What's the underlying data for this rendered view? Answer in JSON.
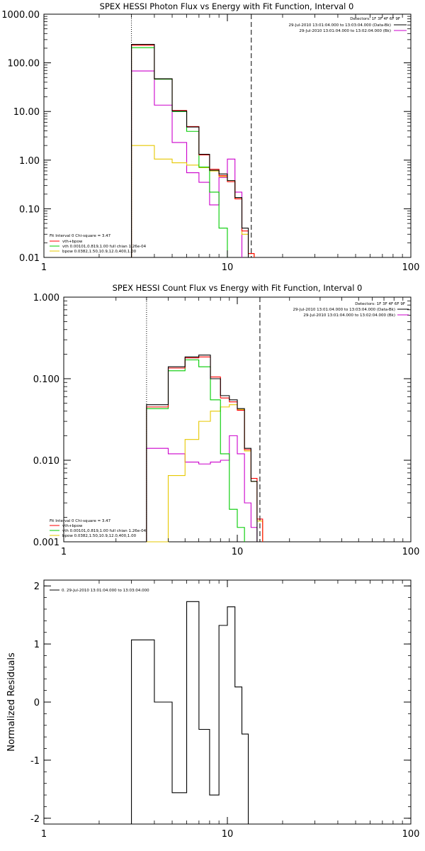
{
  "colors": {
    "total": "#000000",
    "model": "#ff0000",
    "vth": "#00cc00",
    "bpow": "#e6c800",
    "bk": "#cc00cc"
  },
  "chart_data": [
    {
      "type": "line",
      "title": "SPEX HESSI Photon Flux vs Energy with Fit Function, Interval 0",
      "xscale": "log",
      "yscale": "log",
      "xlim": [
        1,
        100
      ],
      "ylim": [
        0.01,
        1000
      ],
      "x_ticks": [
        "1",
        "10",
        "100"
      ],
      "y_ticks": [
        "0.01",
        "0.10",
        "1.00",
        "10.00",
        "100.00",
        "1000.00"
      ],
      "info_lines": [
        "Detectors: 1F 3F 4F 6F 9F",
        "29-Jul-2010 13:01:04.000 to 13:03:04.000 (Data-Bk)",
        "29-Jul-2010 13:01:04.000 to 13:02:04.000 (Bk)"
      ],
      "fit_legend": [
        "Fit Interval 0   Chi-square = 3.47",
        "vth+bpow",
        "vth 0.00101,0.819,1.00   full chian 1.26e-04",
        "bpow 0.0382,1.50,10.9,12.0,400,1.00"
      ],
      "vlines": [
        3.0,
        13.5
      ],
      "bin_edges": [
        3.0,
        4.0,
        5.0,
        6.0,
        7.0,
        8.0,
        9.0,
        10.0,
        11.0,
        12.0,
        13.0,
        14.0,
        15.0
      ],
      "series": [
        {
          "key": "total",
          "values": [
            240,
            47,
            10.2,
            4.8,
            1.32,
            0.62,
            0.52,
            0.38,
            0.17,
            0.04,
            null,
            null
          ]
        },
        {
          "key": "model",
          "values": [
            230,
            47,
            10.5,
            4.9,
            1.28,
            0.65,
            0.48,
            0.36,
            0.16,
            0.035,
            0.012,
            null
          ]
        },
        {
          "key": "vth",
          "values": [
            205,
            46,
            10.0,
            3.9,
            0.72,
            0.22,
            0.04,
            null,
            null,
            null,
            null,
            null
          ]
        },
        {
          "key": "bpow",
          "values": [
            2.0,
            1.05,
            0.88,
            0.79,
            0.7,
            0.6,
            0.46,
            0.38,
            0.16,
            0.03,
            0.012,
            null
          ]
        },
        {
          "key": "bk",
          "values": [
            68,
            13.5,
            2.3,
            0.55,
            0.35,
            0.12,
            0.44,
            1.05,
            0.22,
            null,
            null,
            null
          ]
        }
      ]
    },
    {
      "type": "line",
      "title": "SPEX HESSI Count Flux vs Energy with Fit Function, Interval 0",
      "xscale": "log",
      "yscale": "log",
      "xlim": [
        1,
        100
      ],
      "ylim": [
        0.001,
        1
      ],
      "x_ticks": [
        "1",
        "10",
        "100"
      ],
      "y_ticks": [
        "0.001",
        "0.010",
        "0.100",
        "1.000"
      ],
      "info_lines": [
        "Detectors: 1F 3F 4F 6F 9F",
        "29-Jul-2010 13:01:04.000 to 13:03:04.000 (Data-Bk)",
        "29-Jul-2010 13:01:04.000 to 13:02:04.000 (Bk)"
      ],
      "fit_legend": [
        "Fit Interval 0   Chi-square = 3.47",
        "vth+bpow",
        "vth 0.00101,0.819,1.00   full chian 1.26e-04",
        "bpow 0.0382,1.50,10.9,12.0,400,1.00"
      ],
      "vlines": [
        3.0,
        13.5
      ],
      "bin_edges": [
        3.0,
        4.0,
        5.0,
        6.0,
        7.0,
        8.0,
        9.0,
        10.0,
        11.0,
        12.0,
        13.0,
        14.0,
        15.0
      ],
      "series": [
        {
          "key": "total",
          "values": [
            0.048,
            0.14,
            0.185,
            0.195,
            0.1,
            0.062,
            0.055,
            0.043,
            0.014,
            0.0055,
            null,
            null
          ]
        },
        {
          "key": "model",
          "values": [
            0.045,
            0.135,
            0.18,
            0.185,
            0.105,
            0.058,
            0.052,
            0.041,
            0.0135,
            0.006,
            0.0019,
            null
          ]
        },
        {
          "key": "vth",
          "values": [
            0.043,
            0.125,
            0.17,
            0.14,
            0.055,
            0.012,
            0.0025,
            0.0015,
            null,
            null,
            null,
            null
          ]
        },
        {
          "key": "bpow",
          "values": [
            0.001,
            0.0065,
            0.018,
            0.03,
            0.04,
            0.045,
            0.048,
            0.042,
            0.013,
            0.0055,
            0.0018,
            null
          ]
        },
        {
          "key": "bk",
          "values": [
            0.014,
            0.012,
            0.0095,
            0.009,
            0.0095,
            0.01,
            0.02,
            0.012,
            0.003,
            0.0015,
            null,
            null
          ]
        }
      ]
    },
    {
      "type": "line",
      "title": "",
      "xscale": "log",
      "yscale": "linear",
      "xlim": [
        1,
        100
      ],
      "ylim": [
        -2.1,
        2.1
      ],
      "x_ticks": [
        "1",
        "10",
        "100"
      ],
      "y_ticks": [
        "-2",
        "-1",
        "0",
        "1",
        "2"
      ],
      "ylabel": "Normalized Residuals",
      "legend": "0. 29-Jul-2010 13:01:04.000 to 13:03:04.000",
      "bin_edges": [
        3.0,
        4.0,
        5.0,
        6.0,
        7.0,
        8.0,
        9.0,
        10.0,
        11.0,
        12.0,
        13.0
      ],
      "residuals": [
        1.07,
        0.0,
        -1.56,
        1.73,
        -0.47,
        -1.6,
        1.32,
        1.64,
        0.26,
        -0.55
      ]
    }
  ]
}
